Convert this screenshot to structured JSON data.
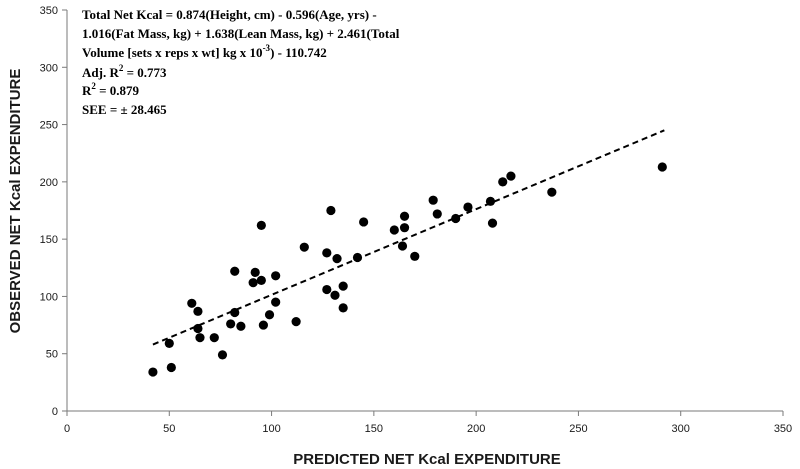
{
  "chart_data": {
    "type": "scatter",
    "xlabel": "PREDICTED NET Kcal EXPENDITURE",
    "ylabel": "OBSERVED NET Kcal EXPENDITURE",
    "xlim": [
      0,
      350
    ],
    "ylim": [
      0,
      350
    ],
    "xticks": [
      0,
      50,
      100,
      150,
      200,
      250,
      300,
      350
    ],
    "yticks": [
      0,
      50,
      100,
      150,
      200,
      250,
      300,
      350
    ],
    "grid": false,
    "annotation": {
      "line1": "Total Net Kcal = 0.874(Height, cm) - 0.596(Age, yrs) -",
      "line2": "1.016(Fat Mass, kg) + 1.638(Lean Mass, kg) +  2.461(Total",
      "line3_pre": "Volume [sets x reps x wt] kg x 10",
      "line3_sup": "-3",
      "line3_post": ") - 110.742",
      "adj_r2_pre": "Adj. R",
      "adj_r2_sup": "2",
      "adj_r2_post": " = 0.773",
      "r2_pre": "R",
      "r2_sup": "2",
      "r2_post": " = 0.879",
      "see": "SEE = ± 28.465"
    },
    "trendline": {
      "style": "dashed",
      "x": [
        42,
        292
      ],
      "y": [
        58,
        245
      ]
    },
    "points": [
      [
        42,
        34
      ],
      [
        50,
        59
      ],
      [
        51,
        38
      ],
      [
        61,
        94
      ],
      [
        64,
        87
      ],
      [
        64,
        72
      ],
      [
        65,
        64
      ],
      [
        72,
        64
      ],
      [
        76,
        49
      ],
      [
        80,
        76
      ],
      [
        82,
        86
      ],
      [
        82,
        122
      ],
      [
        85,
        74
      ],
      [
        91,
        112
      ],
      [
        92,
        121
      ],
      [
        95,
        162
      ],
      [
        95,
        114
      ],
      [
        96,
        75
      ],
      [
        99,
        84
      ],
      [
        102,
        95
      ],
      [
        102,
        118
      ],
      [
        112,
        78
      ],
      [
        116,
        143
      ],
      [
        127,
        138
      ],
      [
        127,
        106
      ],
      [
        129,
        175
      ],
      [
        131,
        101
      ],
      [
        132,
        133
      ],
      [
        135,
        109
      ],
      [
        135,
        90
      ],
      [
        142,
        134
      ],
      [
        145,
        165
      ],
      [
        160,
        158
      ],
      [
        164,
        144
      ],
      [
        165,
        160
      ],
      [
        165,
        170
      ],
      [
        170,
        135
      ],
      [
        179,
        184
      ],
      [
        181,
        172
      ],
      [
        190,
        168
      ],
      [
        196,
        178
      ],
      [
        207,
        183
      ],
      [
        208,
        164
      ],
      [
        213,
        200
      ],
      [
        217,
        205
      ],
      [
        237,
        191
      ],
      [
        291,
        213
      ]
    ]
  }
}
